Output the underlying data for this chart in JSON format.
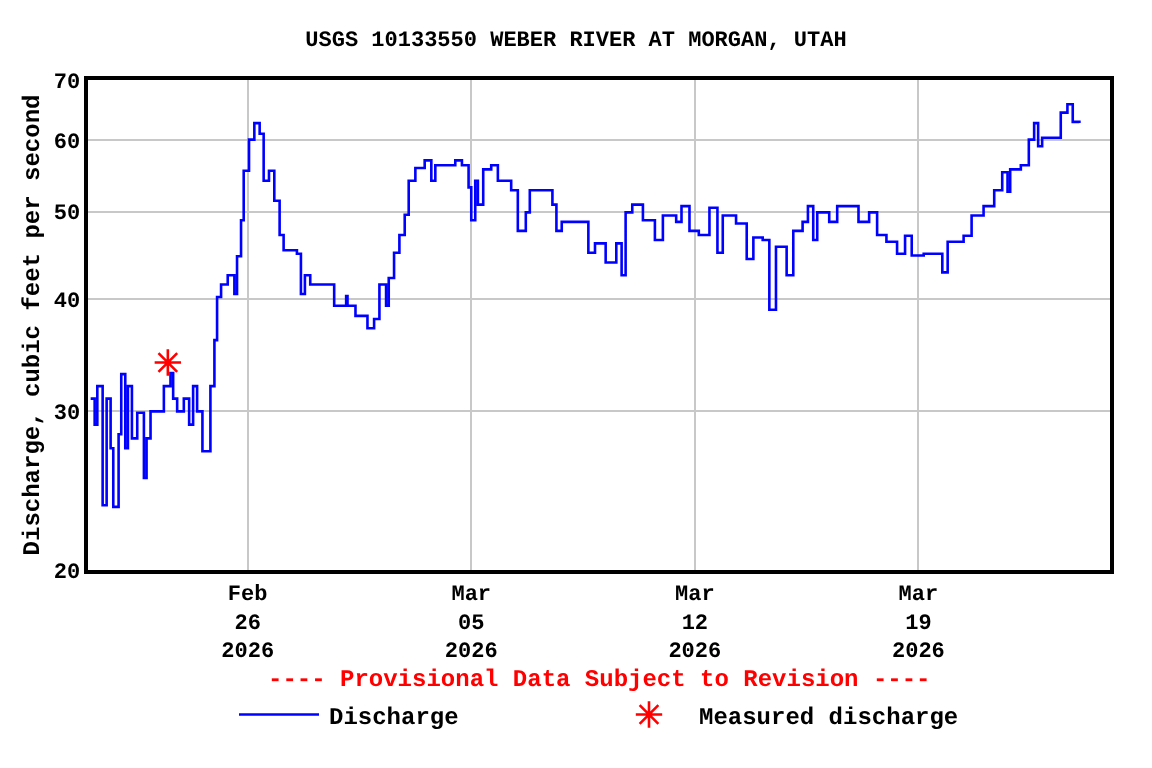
{
  "chart_data": {
    "type": "step",
    "title": "USGS 10133550 WEBER RIVER AT MORGAN, UTAH",
    "ylabel": "Discharge, cubic feet per second",
    "annotations": [
      "---- Provisional Data Subject to Revision ----"
    ],
    "log": "y",
    "grid": true,
    "legend": "bottom",
    "xlim": [
      "2026-02-21",
      "2026-03-25"
    ],
    "xticks": [
      {
        "value": "2026-02-26",
        "label": "Feb\n26\n2026"
      },
      {
        "value": "2026-03-05",
        "label": "Mar\n05\n2026"
      },
      {
        "value": "2026-03-12",
        "label": "Mar\n12\n2026"
      },
      {
        "value": "2026-03-19",
        "label": "Mar\n19\n2026"
      }
    ],
    "ylim": [
      20,
      70
    ],
    "yticks": [
      20,
      30,
      40,
      50,
      60,
      70
    ],
    "series": [
      {
        "name": "Discharge",
        "color": "#0000ff",
        "marker": "none",
        "x": [
          "2026-02-21T02:00",
          "2026-02-21T05:00",
          "2026-02-21T07:00",
          "2026-02-21T11:00",
          "2026-02-21T14:00",
          "2026-02-21T17:00",
          "2026-02-21T19:00",
          "2026-02-21T23:00",
          "2026-02-22T01:00",
          "2026-02-22T04:00",
          "2026-02-22T06:00",
          "2026-02-22T09:00",
          "2026-02-22T13:00",
          "2026-02-22T18:00",
          "2026-02-22T20:00",
          "2026-02-22T23:00",
          "2026-02-23T06:00",
          "2026-02-23T09:00",
          "2026-02-23T14:00",
          "2026-02-23T16:00",
          "2026-02-23T19:00",
          "2026-02-24T00:00",
          "2026-02-24T04:00",
          "2026-02-24T07:00",
          "2026-02-24T10:00",
          "2026-02-24T14:00",
          "2026-02-24T20:00",
          "2026-02-24T23:00",
          "2026-02-25T01:00",
          "2026-02-25T04:00",
          "2026-02-25T09:00",
          "2026-02-25T14:00",
          "2026-02-25T16:00",
          "2026-02-25T19:00",
          "2026-02-25T21:00",
          "2026-02-26T01:00",
          "2026-02-26T05:00",
          "2026-02-26T09:00",
          "2026-02-26T12:00",
          "2026-02-26T16:00",
          "2026-02-26T20:00",
          "2026-02-27T00:00",
          "2026-02-27T03:00",
          "2026-02-27T13:00",
          "2026-02-27T16:00",
          "2026-02-27T19:00",
          "2026-02-27T23:00",
          "2026-02-28T15:00",
          "2026-02-28T17:00",
          "2026-03-01T02:00",
          "2026-03-01T03:00",
          "2026-03-01T09:00",
          "2026-03-01T18:00",
          "2026-03-01T23:00",
          "2026-03-02T03:00",
          "2026-03-02T08:00",
          "2026-03-02T10:00",
          "2026-03-02T14:00",
          "2026-03-02T18:00",
          "2026-03-02T22:00",
          "2026-03-03T01:00",
          "2026-03-03T06:00",
          "2026-03-03T13:00",
          "2026-03-03T18:00",
          "2026-03-03T21:00",
          "2026-03-04T09:00",
          "2026-03-04T12:00",
          "2026-03-04T17:00",
          "2026-03-04T22:00",
          "2026-03-05T00:00",
          "2026-03-05T03:00",
          "2026-03-05T05:00",
          "2026-03-05T09:00",
          "2026-03-05T15:00",
          "2026-03-05T20:00",
          "2026-03-06T06:00",
          "2026-03-06T11:00",
          "2026-03-06T17:00",
          "2026-03-06T20:00",
          "2026-03-07T13:00",
          "2026-03-07T16:00",
          "2026-03-07T20:00",
          "2026-03-08T06:00",
          "2026-03-08T16:00",
          "2026-03-08T21:00",
          "2026-03-09T05:00",
          "2026-03-09T13:00",
          "2026-03-09T17:00",
          "2026-03-09T20:00",
          "2026-03-10T01:00",
          "2026-03-10T09:00",
          "2026-03-10T18:00",
          "2026-03-11T00:00",
          "2026-03-11T10:00",
          "2026-03-11T14:00",
          "2026-03-11T20:00",
          "2026-03-12T03:00",
          "2026-03-12T11:00",
          "2026-03-12T17:00",
          "2026-03-12T21:00",
          "2026-03-13T07:00",
          "2026-03-13T15:00",
          "2026-03-13T20:00",
          "2026-03-14T03:00",
          "2026-03-14T08:00",
          "2026-03-14T13:00",
          "2026-03-14T21:00",
          "2026-03-15T02:00",
          "2026-03-15T09:00",
          "2026-03-15T13:00",
          "2026-03-15T17:00",
          "2026-03-15T20:00",
          "2026-03-16T05:00",
          "2026-03-16T11:00",
          "2026-03-16T21:00",
          "2026-03-17T03:00",
          "2026-03-17T11:00",
          "2026-03-17T17:00",
          "2026-03-18T00:00",
          "2026-03-18T08:00",
          "2026-03-18T14:00",
          "2026-03-18T19:00",
          "2026-03-19T04:00",
          "2026-03-19T14:00",
          "2026-03-19T18:00",
          "2026-03-19T22:00",
          "2026-03-20T10:00",
          "2026-03-20T16:00",
          "2026-03-21T01:00",
          "2026-03-21T09:00",
          "2026-03-21T15:00",
          "2026-03-21T19:00",
          "2026-03-21T21:00",
          "2026-03-22T05:00",
          "2026-03-22T11:00",
          "2026-03-22T15:00",
          "2026-03-22T18:00",
          "2026-03-22T21:00",
          "2026-03-23T06:00",
          "2026-03-23T11:00",
          "2026-03-23T16:00",
          "2026-03-23T20:00",
          "2026-03-24T01:00"
        ],
        "values": [
          31,
          29,
          32,
          23.6,
          31,
          27.3,
          23.5,
          28.3,
          33,
          27.3,
          32,
          28,
          29.9,
          25.3,
          28,
          30,
          30,
          32,
          33.1,
          31,
          30,
          31,
          29,
          32,
          30,
          27.1,
          32,
          36,
          40.2,
          41.5,
          42.5,
          40.5,
          44.6,
          48.9,
          55.5,
          60.1,
          62.7,
          61,
          54.1,
          55.5,
          51.4,
          47.1,
          45.3,
          44.9,
          40.5,
          42.5,
          41.5,
          41.5,
          39.3,
          40.3,
          39.3,
          38.3,
          37.1,
          38,
          41.5,
          39.3,
          42.2,
          45,
          47.1,
          49.6,
          54.1,
          55.9,
          57,
          54.1,
          56.3,
          56.3,
          57,
          56.3,
          53.2,
          48.9,
          54.1,
          50.9,
          55.7,
          56.3,
          54.1,
          52.8,
          47.6,
          49.9,
          52.8,
          50.9,
          47.6,
          48.7,
          48.7,
          45,
          46.1,
          43.9,
          46.1,
          42.5,
          49.9,
          50.9,
          48.9,
          46.5,
          49.5,
          48.7,
          50.7,
          47.6,
          47.1,
          50.5,
          45,
          49.5,
          48.5,
          44.3,
          46.8,
          46.5,
          38.9,
          45.7,
          42.5,
          47.6,
          48.7,
          50.7,
          46.5,
          49.9,
          48.7,
          50.7,
          50.7,
          48.7,
          49.9,
          47.1,
          46.3,
          44.9,
          47,
          44.7,
          44.9,
          44.9,
          42.8,
          46.3,
          47,
          49.5,
          50.7,
          52.8,
          55.3,
          52.6,
          55.7,
          56.3,
          60.1,
          62.7,
          59.1,
          60.4,
          60.4,
          64.4,
          65.8,
          62.9,
          62.7
        ]
      },
      {
        "name": "Measured discharge",
        "type": "scatter",
        "color": "#ff0000",
        "marker": "cross",
        "x": [
          "2026-02-23T12:00"
        ],
        "values": [
          34
        ]
      }
    ]
  }
}
